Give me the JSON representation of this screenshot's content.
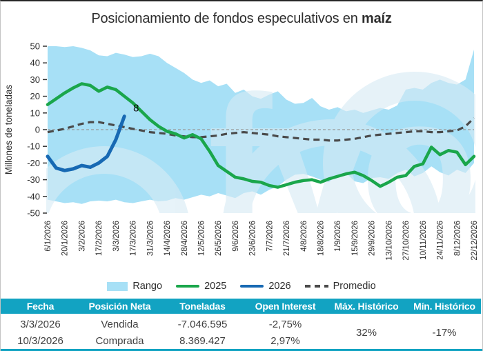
{
  "title": {
    "prefix": "Posicionamiento de fondos especulativos en ",
    "highlight": "maíz"
  },
  "watermark": {
    "text": "fyo"
  },
  "colors": {
    "band": "#a7e0f6",
    "line_2025": "#1aa64b",
    "line_2026": "#1769b3",
    "promedio": "#4a4a4a",
    "zero_line": "#999999",
    "table_header_bg": "#12a3c2",
    "watermark": "#d7ebf5"
  },
  "chart_data": {
    "type": "line",
    "title": "Posicionamiento de fondos especulativos en maíz",
    "ylabel": "Millones de toneladas",
    "ylim": [
      -50,
      50
    ],
    "ytick_step": 10,
    "grid": false,
    "legend_position": "bottom",
    "x_labels": [
      "6/1/2026",
      "20/1/2026",
      "3/2/2026",
      "17/2/2026",
      "3/3/2026",
      "17/3/2026",
      "31/3/2026",
      "14/4/2026",
      "28/4/2026",
      "12/5/2026",
      "26/5/2026",
      "9/6/2026",
      "23/6/2026",
      "7/7/2026",
      "21/7/2026",
      "4/8/2026",
      "18/8/2026",
      "1/9/2026",
      "15/9/2026",
      "29/9/2026",
      "13/10/2026",
      "27/10/2026",
      "10/11/2026",
      "24/11/2026",
      "8/12/2026",
      "22/12/2026"
    ],
    "points_per_label": 2,
    "annotation": {
      "text": "8",
      "series": "2026",
      "at": "last-point"
    },
    "series": [
      {
        "name": "Rango",
        "type": "band",
        "upper": [
          50,
          50,
          49.5,
          50,
          49,
          47.5,
          44.5,
          44,
          46,
          45,
          43.5,
          44,
          45.5,
          44,
          40,
          37,
          34,
          30,
          28,
          29.5,
          26,
          27.5,
          22,
          24,
          20,
          18.5,
          21,
          23,
          18,
          15.5,
          16,
          19,
          14,
          12,
          13.5,
          11,
          12,
          10,
          11.5,
          13,
          12,
          14.5,
          24,
          25,
          24,
          28,
          30,
          28,
          27,
          30,
          48
        ],
        "lower": [
          -42,
          -43,
          -44,
          -43.5,
          -44.5,
          -43,
          -42.5,
          -43,
          -42,
          -43.5,
          -44,
          -43,
          -42,
          -43,
          -42.5,
          -41,
          -42,
          -40.5,
          -39,
          -40,
          -38,
          -39.5,
          -41,
          -38,
          -37,
          -39,
          -36,
          -34,
          -30,
          -27,
          -26.5,
          -28,
          -30,
          -31.5,
          -27,
          -26,
          -31,
          -32,
          -29,
          -28.5,
          -29.5,
          -26,
          -24,
          -28,
          -26,
          -22,
          -25.5,
          -27.5,
          -24,
          -26,
          -20
        ]
      },
      {
        "name": "2025",
        "type": "line",
        "values": [
          15,
          18.5,
          22,
          25,
          27.5,
          26.5,
          23,
          25.5,
          24,
          20,
          16,
          11,
          6,
          2,
          -1,
          -2.5,
          -5,
          -3,
          -5.5,
          -13,
          -21.5,
          -25,
          -28.5,
          -29.5,
          -31,
          -31.5,
          -33.5,
          -34.5,
          -33,
          -31.5,
          -30.5,
          -30,
          -31.5,
          -29.5,
          -28,
          -26.5,
          -25.5,
          -27.5,
          -30.5,
          -34,
          -31.5,
          -28.5,
          -27.5,
          -22,
          -20.5,
          -10.5,
          -15,
          -12.5,
          -13.5,
          -21,
          -16
        ]
      },
      {
        "name": "2026",
        "type": "line",
        "values": [
          -16,
          -23,
          -24.5,
          -23.5,
          -21.5,
          -22.5,
          -20,
          -16,
          -6,
          8
        ]
      },
      {
        "name": "Promedio",
        "type": "dashed",
        "values": [
          -1.5,
          -0.5,
          0.5,
          2,
          3.5,
          4.5,
          4.5,
          3.5,
          2.5,
          1.5,
          0.5,
          -0.5,
          -1.5,
          -2,
          -2.5,
          -3.5,
          -4,
          -4.5,
          -4.5,
          -4,
          -3.5,
          -2.5,
          -2,
          -1.5,
          -2,
          -2.5,
          -3,
          -4,
          -4.5,
          -5,
          -5.5,
          -6,
          -6,
          -6.5,
          -6.5,
          -6,
          -5.5,
          -4.5,
          -3.5,
          -3,
          -2.5,
          -2,
          -1.5,
          -1,
          -1,
          -1.5,
          -1.5,
          -1,
          -0.5,
          2,
          7
        ]
      }
    ]
  },
  "legend": {
    "items": [
      {
        "label": "Rango",
        "swatch": "band"
      },
      {
        "label": "2025",
        "swatch": "line-2025"
      },
      {
        "label": "2026",
        "swatch": "line-2026"
      },
      {
        "label": "Promedio",
        "swatch": "dash"
      }
    ]
  },
  "table": {
    "headers": [
      "Fecha",
      "Posición Neta",
      "Toneladas",
      "Open Interest",
      "Máx. Histórico",
      "Mín. Histórico"
    ],
    "rows": [
      {
        "fecha": "3/3/2026",
        "posicion_neta": "Vendida",
        "toneladas": "-7.046.595",
        "open_interest": "-2,75%"
      },
      {
        "fecha": "10/3/2026",
        "posicion_neta": "Comprada",
        "toneladas": "8.369.427",
        "open_interest": "2,97%"
      }
    ],
    "max_historico": "32%",
    "min_historico": "-17%"
  }
}
